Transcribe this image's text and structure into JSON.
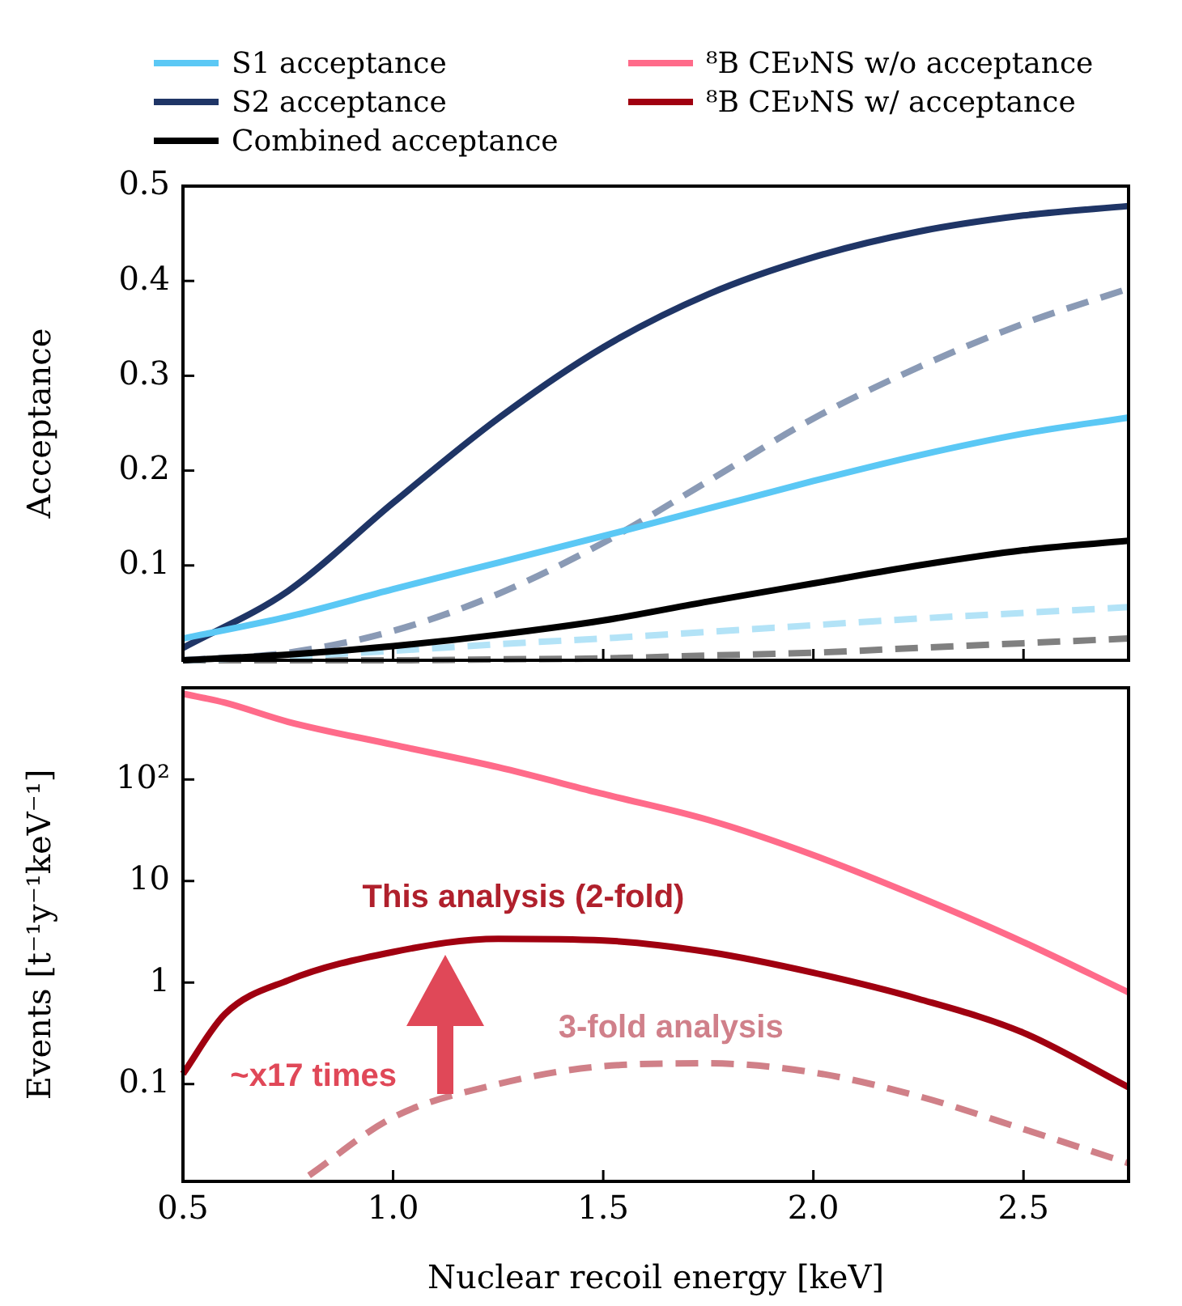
{
  "chart_data": [
    {
      "type": "line",
      "ylabel": "Acceptance",
      "legend": "top",
      "tick_labels": "y",
      "x": [
        0.5,
        0.75,
        1.0,
        1.25,
        1.5,
        1.75,
        2.0,
        2.25,
        2.5,
        2.75
      ],
      "xlim": [
        0.5,
        2.75
      ],
      "xticks": [
        0.5,
        1,
        1.5,
        2,
        2.5
      ],
      "ylim": [
        0,
        0.5
      ],
      "yticks": [
        0.1,
        0.2,
        0.3,
        0.4,
        0.5
      ],
      "series": [
        {
          "name": "S1 acceptance",
          "color": "#5bc8f5",
          "values": [
            0.023,
            0.046,
            0.075,
            0.103,
            0.131,
            0.16,
            0.189,
            0.216,
            0.239,
            0.256
          ]
        },
        {
          "name": "S2 acceptance",
          "color": "#1f3566",
          "values": [
            0.013,
            0.073,
            0.166,
            0.255,
            0.33,
            0.386,
            0.425,
            0.452,
            0.469,
            0.479
          ]
        },
        {
          "name": "Combined acceptance",
          "color": "#000000",
          "values": [
            0.0,
            0.006,
            0.015,
            0.027,
            0.042,
            0.062,
            0.081,
            0.1,
            0.116,
            0.126
          ]
        },
        {
          "color": "#8a9ab5",
          "line_style": "dashed",
          "values": [
            0.0,
            0.008,
            0.031,
            0.07,
            0.124,
            0.189,
            0.255,
            0.309,
            0.355,
            0.392
          ]
        },
        {
          "color": "#b3e3f7",
          "line_style": "dashed",
          "values": [
            0.0,
            0.004,
            0.01,
            0.017,
            0.023,
            0.03,
            0.037,
            0.044,
            0.05,
            0.056
          ]
        },
        {
          "color": "#808080",
          "line_style": "dashed",
          "values": [
            0.0,
            0.0,
            0.0,
            0.001,
            0.002,
            0.005,
            0.008,
            0.013,
            0.018,
            0.023
          ]
        }
      ]
    },
    {
      "type": "line",
      "xlabel": "Nuclear recoil energy [keV]",
      "ylabel": "Events [t⁻¹y⁻¹keV⁻¹]",
      "legend": "top",
      "log": "y",
      "x": [
        0.5,
        0.6,
        0.75,
        1.0,
        1.25,
        1.5,
        1.75,
        2.0,
        2.25,
        2.5,
        2.75
      ],
      "xlim": [
        0.5,
        2.75
      ],
      "xticks": [
        0.5,
        {
          "value": 1.0,
          "label": "1.0"
        },
        1.5,
        {
          "value": 2.0,
          "label": "2.0"
        },
        2.5
      ],
      "ylim": [
        0.011,
        800
      ],
      "yticks": [
        0.1,
        1,
        10,
        {
          "value": 100,
          "label": "10²"
        }
      ],
      "series": [
        {
          "name": "⁸B CEνNS w/o acceptance",
          "color": "#ff6b8a",
          "values": [
            700,
            570,
            370,
            220,
            132,
            72,
            40,
            18,
            7,
            2.5,
            0.8
          ]
        },
        {
          "name": "⁸B CEνNS w/ acceptance",
          "color": "#a00010",
          "values": [
            0.126,
            0.49,
            1.05,
            2.0,
            2.7,
            2.6,
            2.0,
            1.25,
            0.69,
            0.32,
            0.093
          ]
        },
        {
          "color": "#d08088",
          "line_style": "dashed",
          "x": [
            0.8,
            1.0,
            1.25,
            1.5,
            1.75,
            2.0,
            2.25,
            2.5,
            2.75
          ],
          "values": [
            0.0126,
            0.047,
            0.1,
            0.15,
            0.16,
            0.13,
            0.076,
            0.036,
            0.0166
          ]
        }
      ],
      "annotations": [
        "This analysis (2-fold)",
        "3-fold analysis",
        "~x17 times"
      ]
    }
  ]
}
